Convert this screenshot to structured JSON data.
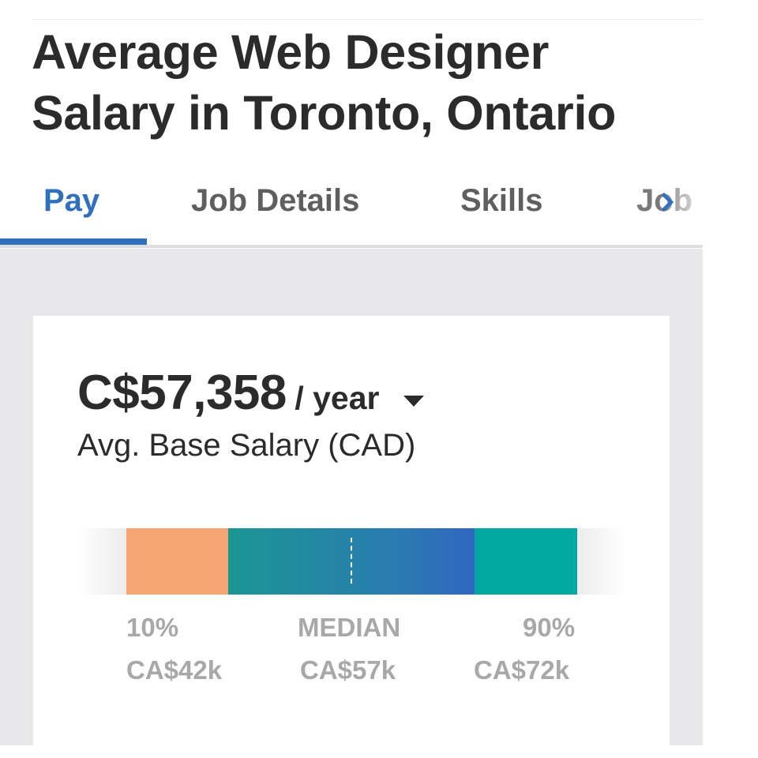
{
  "page": {
    "title": "Average Web Designer Salary in Toronto, Ontario"
  },
  "tabs": [
    {
      "label": "Pay",
      "active": true
    },
    {
      "label": "Job Details",
      "active": false
    },
    {
      "label": "Skills",
      "active": false
    },
    {
      "label": "Job",
      "active": false
    }
  ],
  "salary": {
    "amount": "C$57,358",
    "period": "/ year",
    "subtitle": "Avg. Base Salary (CAD)"
  },
  "range": {
    "low": {
      "percentile": "10%",
      "value": "CA$42k"
    },
    "median": {
      "percentile": "MEDIAN",
      "value": "CA$57k"
    },
    "high": {
      "percentile": "90%",
      "value": "CA$72k"
    }
  },
  "colors": {
    "accent": "#2f6fbd",
    "low_segment": "#f5a571",
    "mid_segment_start": "#1b9694",
    "mid_segment_end": "#3266c0",
    "high_segment": "#00a8a0"
  },
  "icons": {
    "dropdown": "caret-down-icon",
    "tab_scroll": "chevron-right-icon"
  }
}
